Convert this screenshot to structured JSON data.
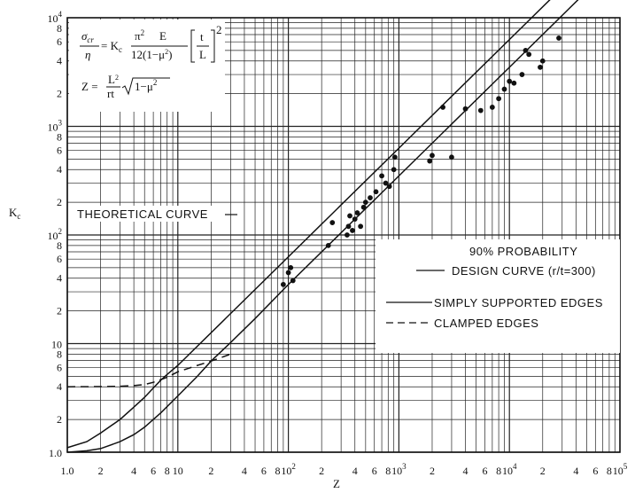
{
  "chart_data": {
    "type": "line",
    "xscale": "log",
    "yscale": "log",
    "xlim": [
      1,
      100000
    ],
    "ylim": [
      1,
      10000
    ],
    "xlabel": "Z",
    "ylabel": "K",
    "ylabel_sub": "c",
    "x_major_ticks": [
      {
        "value": 1,
        "label": "1.0"
      },
      {
        "value": 10,
        "label": "10"
      },
      {
        "value": 100,
        "label": "10",
        "sup": "2"
      },
      {
        "value": 1000,
        "label": "10",
        "sup": "3"
      },
      {
        "value": 10000,
        "label": "10",
        "sup": "4"
      },
      {
        "value": 100000,
        "label": "10",
        "sup": "5"
      }
    ],
    "x_minor_labels": [
      "2",
      "4",
      "6",
      "8"
    ],
    "y_major_ticks": [
      {
        "value": 1,
        "label": "1.0"
      },
      {
        "value": 10,
        "label": "10"
      },
      {
        "value": 100,
        "label": "10",
        "sup": "2"
      },
      {
        "value": 1000,
        "label": "10",
        "sup": "3"
      },
      {
        "value": 10000,
        "label": "10",
        "sup": "4"
      }
    ],
    "y_minor_labels": [
      "2",
      "4",
      "6",
      "8"
    ],
    "series": [
      {
        "name": "SIMPLY SUPPORTED EDGES",
        "style": "solid",
        "x": [
          1,
          1.5,
          2,
          3,
          4,
          5,
          7,
          10,
          15,
          20,
          30,
          50,
          100,
          1000,
          10000,
          50000
        ],
        "y": [
          1.0,
          1.03,
          1.08,
          1.25,
          1.45,
          1.7,
          2.3,
          3.3,
          5.0,
          6.9,
          10.2,
          17,
          35,
          350,
          3500,
          17500
        ]
      },
      {
        "name": "CLAMPED EDGES",
        "style": "dashed",
        "x": [
          1,
          2,
          3,
          4,
          5,
          6,
          8,
          10,
          15,
          20,
          30
        ],
        "y": [
          4.0,
          4.02,
          4.05,
          4.1,
          4.2,
          4.4,
          4.9,
          5.5,
          6.3,
          6.9,
          8.0
        ]
      },
      {
        "name": "THEORETICAL CURVE",
        "style": "solid",
        "x": [
          1,
          1.5,
          2,
          3,
          4,
          5,
          6,
          7,
          8,
          10,
          100,
          1000,
          10000,
          50000
        ],
        "y": [
          1.1,
          1.25,
          1.5,
          2.0,
          2.6,
          3.2,
          3.9,
          4.6,
          5.2,
          6.3,
          63,
          630,
          6300,
          31500
        ]
      }
    ],
    "points": [
      {
        "x": 90,
        "y": 35
      },
      {
        "x": 110,
        "y": 38
      },
      {
        "x": 100,
        "y": 45
      },
      {
        "x": 105,
        "y": 50
      },
      {
        "x": 230,
        "y": 80
      },
      {
        "x": 250,
        "y": 130
      },
      {
        "x": 340,
        "y": 100
      },
      {
        "x": 350,
        "y": 120
      },
      {
        "x": 360,
        "y": 150
      },
      {
        "x": 380,
        "y": 110
      },
      {
        "x": 400,
        "y": 140
      },
      {
        "x": 420,
        "y": 160
      },
      {
        "x": 450,
        "y": 120
      },
      {
        "x": 480,
        "y": 180
      },
      {
        "x": 500,
        "y": 200
      },
      {
        "x": 550,
        "y": 220
      },
      {
        "x": 620,
        "y": 250
      },
      {
        "x": 700,
        "y": 350
      },
      {
        "x": 760,
        "y": 300
      },
      {
        "x": 820,
        "y": 280
      },
      {
        "x": 900,
        "y": 400
      },
      {
        "x": 920,
        "y": 520
      },
      {
        "x": 1900,
        "y": 480
      },
      {
        "x": 2000,
        "y": 540
      },
      {
        "x": 2500,
        "y": 1500
      },
      {
        "x": 3000,
        "y": 520
      },
      {
        "x": 4000,
        "y": 1450
      },
      {
        "x": 5500,
        "y": 1400
      },
      {
        "x": 7000,
        "y": 1500
      },
      {
        "x": 8000,
        "y": 1800
      },
      {
        "x": 9000,
        "y": 2200
      },
      {
        "x": 10000,
        "y": 2600
      },
      {
        "x": 11000,
        "y": 2500
      },
      {
        "x": 13000,
        "y": 3000
      },
      {
        "x": 14000,
        "y": 5000
      },
      {
        "x": 15000,
        "y": 4600
      },
      {
        "x": 19000,
        "y": 3500
      },
      {
        "x": 20000,
        "y": 4000
      },
      {
        "x": 28000,
        "y": 6500
      }
    ],
    "annotations": {
      "theoretical": "THEORETICAL CURVE",
      "prob1": "90% PROBABILITY",
      "prob2": "DESIGN CURVE (r/t=300)",
      "simply": "SIMPLY SUPPORTED EDGES",
      "clamped": "CLAMPED EDGES"
    },
    "formula": {
      "sigma": "σ",
      "sigma_sub": "cr",
      "eta": "η",
      "eq": "= K",
      "eq_sub": "c",
      "pi2": "π",
      "pi2_sup": "2",
      "E": "E",
      "denom": "12(1−μ",
      "denom_sup": "2",
      "denom_close": ")",
      "t": "t",
      "L": "L",
      "bracket_sup": "2",
      "z_lhs": "Z =",
      "z_num": "L",
      "z_num_sup": "2",
      "z_den": "rt",
      "z_rad": "1−μ",
      "z_rad_sup": "2"
    }
  }
}
